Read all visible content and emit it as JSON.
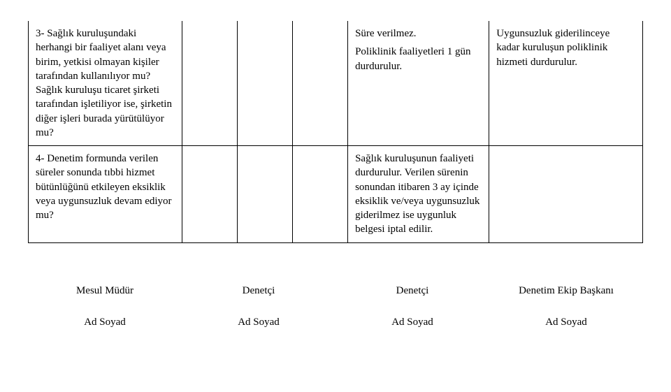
{
  "rows": [
    {
      "c1": "3- Sağlık kuruluşundaki herhangi bir faaliyet alanı veya birim, yetkisi olmayan kişiler tarafından kullanılıyor mu? Sağlık kuruluşu ticaret şirketi tarafından işletiliyor ise, şirketin diğer işleri burada yürütülüyor mu?",
      "c5a": "Süre verilmez.",
      "c5b": "Poliklinik faaliyetleri 1 gün durdurulur.",
      "c6": "Uygunsuzluk giderilinceye kadar kuruluşun poliklinik hizmeti durdurulur."
    },
    {
      "c1": "4- Denetim formunda verilen süreler sonunda tıbbi hizmet bütünlüğünü etkileyen eksiklik veya uygunsuzluk devam ediyor mu?",
      "c5": "Sağlık kuruluşunun faaliyeti durdurulur. Verilen sürenin sonundan itibaren 3 ay içinde eksiklik ve/veya uygunsuzluk giderilmez ise uygunluk belgesi iptal edilir."
    }
  ],
  "sig": {
    "titles": [
      "Mesul Müdür",
      "Denetçi",
      "Denetçi",
      "Denetim Ekip Başkanı"
    ],
    "name": "Ad Soyad"
  }
}
